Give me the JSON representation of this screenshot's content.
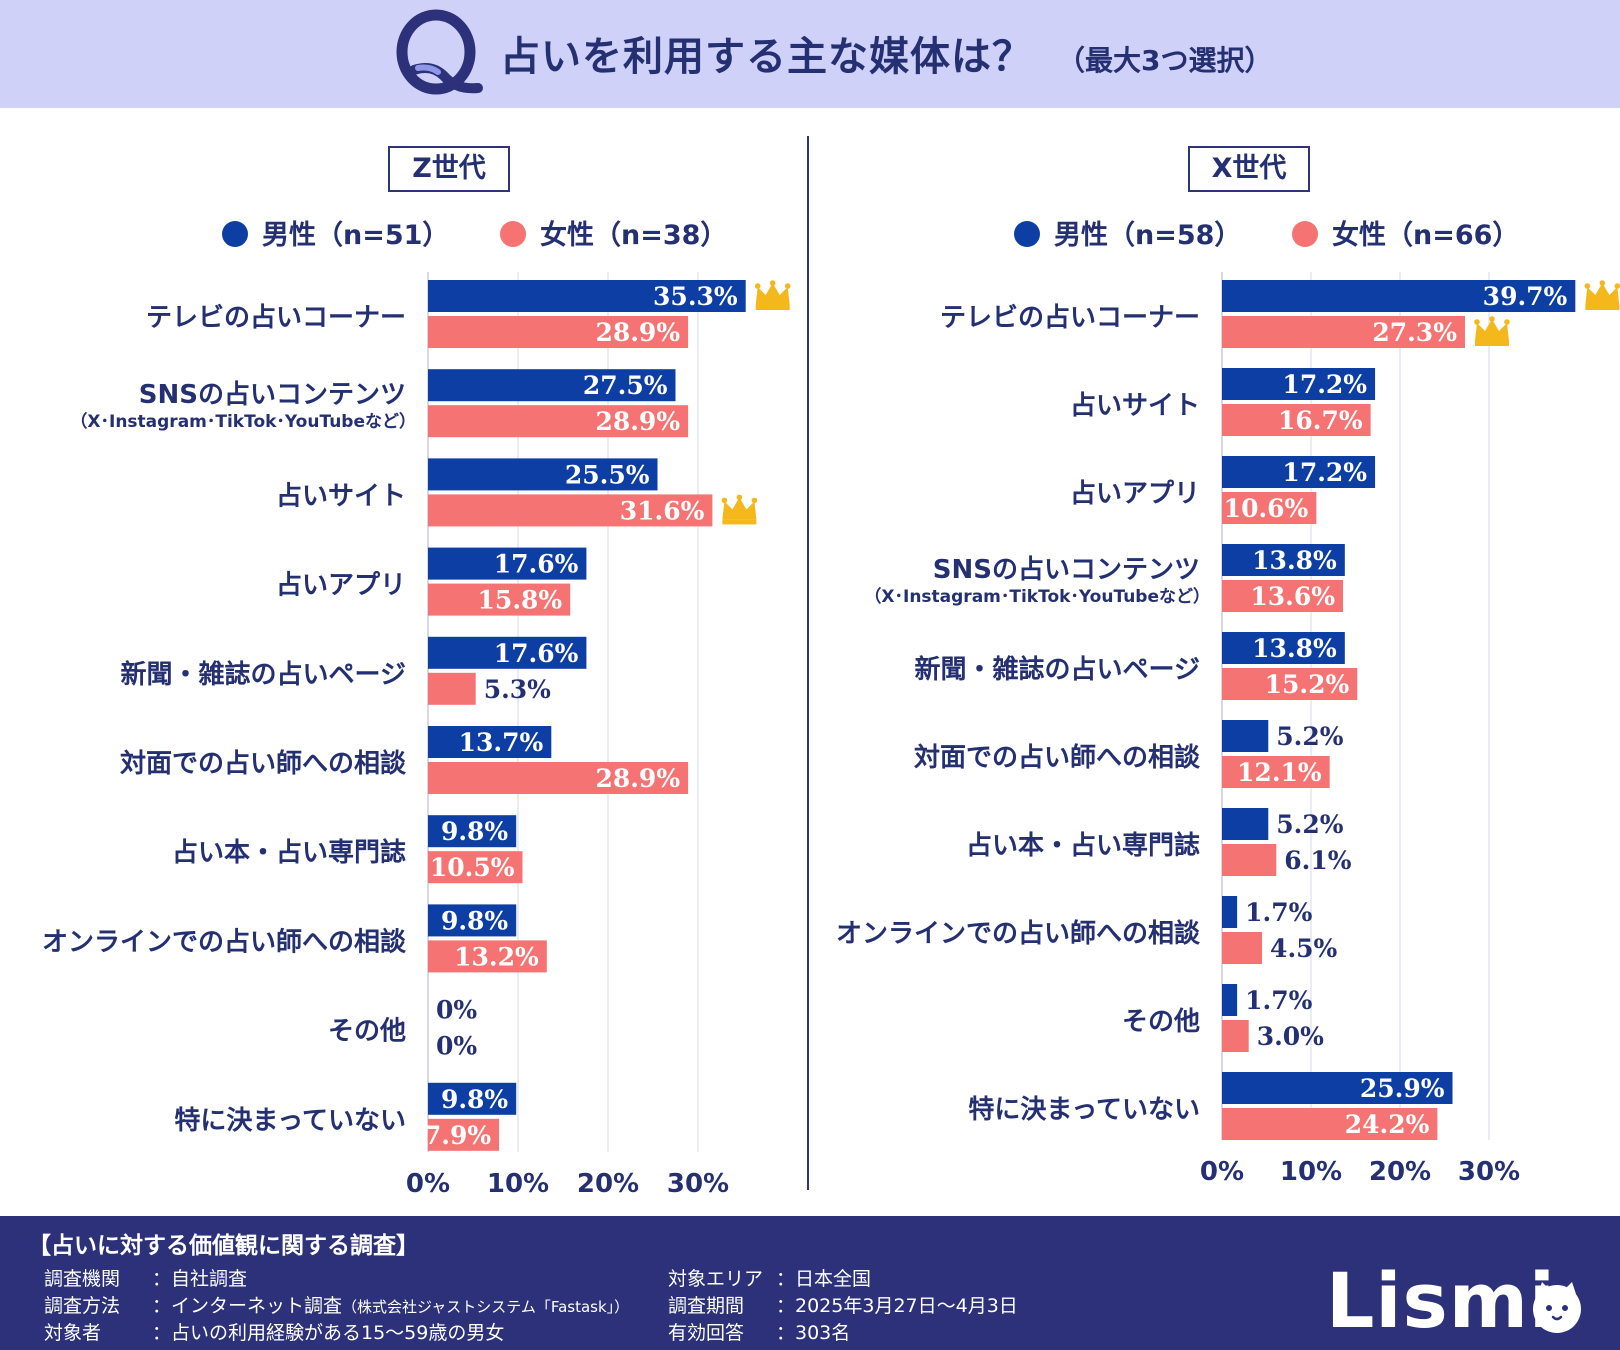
{
  "header": {
    "title": "占いを利用する主な媒体は？",
    "subtitle": "（最大3つ選択）",
    "logo": "q-logo-icon"
  },
  "colors": {
    "male": "#0d3ea3",
    "female": "#f57373",
    "crown": "#f5b81c",
    "navy": "#2c3179"
  },
  "panels": [
    {
      "title": "Z世代",
      "legend": {
        "male": "男性（n=51）",
        "female": "女性（n=38）"
      }
    },
    {
      "title": "X世代",
      "legend": {
        "male": "男性（n=58）",
        "female": "女性（n=66）"
      }
    }
  ],
  "chart_data": [
    {
      "type": "bar",
      "orientation": "horizontal",
      "title": "Z世代",
      "categories": [
        [
          "テレビの占いコーナー"
        ],
        [
          "SNSの占いコンテンツ",
          "（X･Instagram･TikTok･YouTubeなど）"
        ],
        [
          "占いサイト"
        ],
        [
          "占いアプリ"
        ],
        [
          "新聞・雑誌の占いページ"
        ],
        [
          "対面での占い師への相談"
        ],
        [
          "占い本・占い専門誌"
        ],
        [
          "オンラインでの占い師への相談"
        ],
        [
          "その他"
        ],
        [
          "特に決まっていない"
        ]
      ],
      "series": [
        {
          "name": "男性（n=51）",
          "values": [
            35.3,
            27.5,
            25.5,
            17.6,
            17.6,
            13.7,
            9.8,
            9.8,
            0,
            9.8
          ],
          "labels": [
            "35.3%",
            "27.5%",
            "25.5%",
            "17.6%",
            "17.6%",
            "13.7%",
            "9.8%",
            "9.8%",
            "0%",
            "9.8%"
          ]
        },
        {
          "name": "女性（n=38）",
          "values": [
            28.9,
            28.9,
            31.6,
            15.8,
            5.3,
            28.9,
            10.5,
            13.2,
            0,
            7.9
          ],
          "labels": [
            "28.9%",
            "28.9%",
            "31.6%",
            "15.8%",
            "5.3%",
            "28.9%",
            "10.5%",
            "13.2%",
            "0%",
            "7.9%"
          ]
        }
      ],
      "crowns": [
        [
          0,
          0
        ],
        [
          1,
          2
        ]
      ],
      "xlim": [
        0,
        40
      ],
      "xticks": [
        0,
        10,
        20,
        30
      ],
      "xtick_labels": [
        "0%",
        "10%",
        "20%",
        "30%"
      ],
      "grid": true,
      "legend": "top"
    },
    {
      "type": "bar",
      "orientation": "horizontal",
      "title": "X世代",
      "categories": [
        [
          "テレビの占いコーナー"
        ],
        [
          "占いサイト"
        ],
        [
          "占いアプリ"
        ],
        [
          "SNSの占いコンテンツ",
          "（X･Instagram･TikTok･YouTubeなど）"
        ],
        [
          "新聞・雑誌の占いページ"
        ],
        [
          "対面での占い師への相談"
        ],
        [
          "占い本・占い専門誌"
        ],
        [
          "オンラインでの占い師への相談"
        ],
        [
          "その他"
        ],
        [
          "特に決まっていない"
        ]
      ],
      "series": [
        {
          "name": "男性（n=58）",
          "values": [
            39.7,
            17.2,
            17.2,
            13.8,
            13.8,
            5.2,
            5.2,
            1.7,
            1.7,
            25.9
          ],
          "labels": [
            "39.7%",
            "17.2%",
            "17.2%",
            "13.8%",
            "13.8%",
            "5.2%",
            "5.2%",
            "1.7%",
            "1.7%",
            "25.9%"
          ]
        },
        {
          "name": "女性（n=66）",
          "values": [
            27.3,
            16.7,
            10.6,
            13.6,
            15.2,
            12.1,
            6.1,
            4.5,
            3.0,
            24.2
          ],
          "labels": [
            "27.3%",
            "16.7%",
            "10.6%",
            "13.6%",
            "15.2%",
            "12.1%",
            "6.1%",
            "4.5%",
            "3.0%",
            "24.2%"
          ]
        }
      ],
      "crowns": [
        [
          0,
          0
        ],
        [
          1,
          0
        ]
      ],
      "xlim": [
        0,
        40
      ],
      "xticks": [
        0,
        10,
        20,
        30
      ],
      "xtick_labels": [
        "0%",
        "10%",
        "20%",
        "30%"
      ],
      "grid": true,
      "legend": "top"
    }
  ],
  "footer": {
    "title": "【占いに対する価値観に関する調査】",
    "rows_left": [
      {
        "label": "調査機関",
        "value": "：自社調査",
        "note": ""
      },
      {
        "label": "調査方法",
        "value": "：インターネット調査",
        "note": "（株式会社ジャストシステム「Fastask」）"
      },
      {
        "label": "対象者",
        "value": "：占いの利用経験がある15～59歳の男女",
        "note": ""
      }
    ],
    "rows_right": [
      {
        "label": "対象エリア",
        "value": "：日本全国"
      },
      {
        "label": "調査期間",
        "value": "：2025年3月27日～4月3日"
      },
      {
        "label": "有効回答",
        "value": "：303名"
      }
    ],
    "brand": "Lismi",
    "brand_icon": "cat-icon"
  }
}
